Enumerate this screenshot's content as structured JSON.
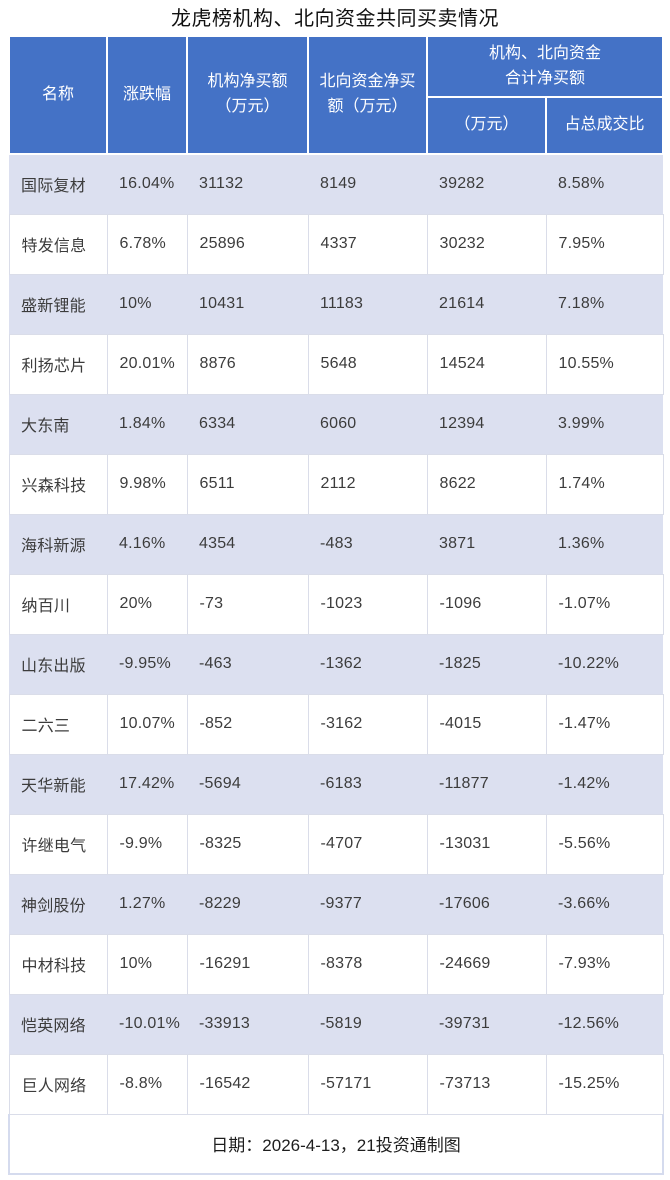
{
  "title": "龙虎榜机构、北向资金共同买卖情况",
  "colors": {
    "header_bg": "#4472C6",
    "header_text": "#FFFFFF",
    "stripe_row_bg": "#DCE0F0",
    "white_row_border": "#DADDE9",
    "footer_border": "#D5DBEE",
    "body_text": "#3C3C3C"
  },
  "table": {
    "headers": {
      "name": "名称",
      "change": "涨跌幅",
      "inst_net_buy": "机构净买额\n（万元）",
      "north_net_buy": "北向资金净买\n额（万元）",
      "combined_group": "机构、北向资金\n合计净买额",
      "combined_wan": "（万元）",
      "combined_ratio": "占总成交比"
    }
  },
  "chart_data": {
    "type": "table",
    "title": "龙虎榜机构、北向资金共同买卖情况",
    "columns": [
      "名称",
      "涨跌幅",
      "机构净买额（万元）",
      "北向资金净买额（万元）",
      "机构、北向资金合计净买额（万元）",
      "机构、北向资金合计净买额占总成交比"
    ],
    "rows": [
      {
        "name": "国际复材",
        "change": "16.04%",
        "inst": "31132",
        "north": "8149",
        "total": "39282",
        "ratio": "8.58%"
      },
      {
        "name": "特发信息",
        "change": "6.78%",
        "inst": "25896",
        "north": "4337",
        "total": "30232",
        "ratio": "7.95%"
      },
      {
        "name": "盛新锂能",
        "change": "10%",
        "inst": "10431",
        "north": "11183",
        "total": "21614",
        "ratio": "7.18%"
      },
      {
        "name": "利扬芯片",
        "change": "20.01%",
        "inst": "8876",
        "north": "5648",
        "total": "14524",
        "ratio": "10.55%"
      },
      {
        "name": "大东南",
        "change": "1.84%",
        "inst": "6334",
        "north": "6060",
        "total": "12394",
        "ratio": "3.99%"
      },
      {
        "name": "兴森科技",
        "change": "9.98%",
        "inst": "6511",
        "north": "2112",
        "total": "8622",
        "ratio": "1.74%"
      },
      {
        "name": "海科新源",
        "change": "4.16%",
        "inst": "4354",
        "north": "-483",
        "total": "3871",
        "ratio": "1.36%"
      },
      {
        "name": "纳百川",
        "change": "20%",
        "inst": "-73",
        "north": "-1023",
        "total": "-1096",
        "ratio": "-1.07%"
      },
      {
        "name": "山东出版",
        "change": "-9.95%",
        "inst": "-463",
        "north": "-1362",
        "total": "-1825",
        "ratio": "-10.22%"
      },
      {
        "name": "二六三",
        "change": "10.07%",
        "inst": "-852",
        "north": "-3162",
        "total": "-4015",
        "ratio": "-1.47%"
      },
      {
        "name": "天华新能",
        "change": "17.42%",
        "inst": "-5694",
        "north": "-6183",
        "total": "-11877",
        "ratio": "-1.42%"
      },
      {
        "name": "许继电气",
        "change": "-9.9%",
        "inst": "-8325",
        "north": "-4707",
        "total": "-13031",
        "ratio": "-5.56%"
      },
      {
        "name": "神剑股份",
        "change": "1.27%",
        "inst": "-8229",
        "north": "-9377",
        "total": "-17606",
        "ratio": "-3.66%"
      },
      {
        "name": "中材科技",
        "change": "10%",
        "inst": "-16291",
        "north": "-8378",
        "total": "-24669",
        "ratio": "-7.93%"
      },
      {
        "name": "恺英网络",
        "change": "-10.01%",
        "inst": "-33913",
        "north": "-5819",
        "total": "-39731",
        "ratio": "-12.56%"
      },
      {
        "name": "巨人网络",
        "change": "-8.8%",
        "inst": "-16542",
        "north": "-57171",
        "total": "-73713",
        "ratio": "-15.25%"
      }
    ]
  },
  "footer": {
    "note": "日期：2026-4-13，21投资通制图"
  }
}
